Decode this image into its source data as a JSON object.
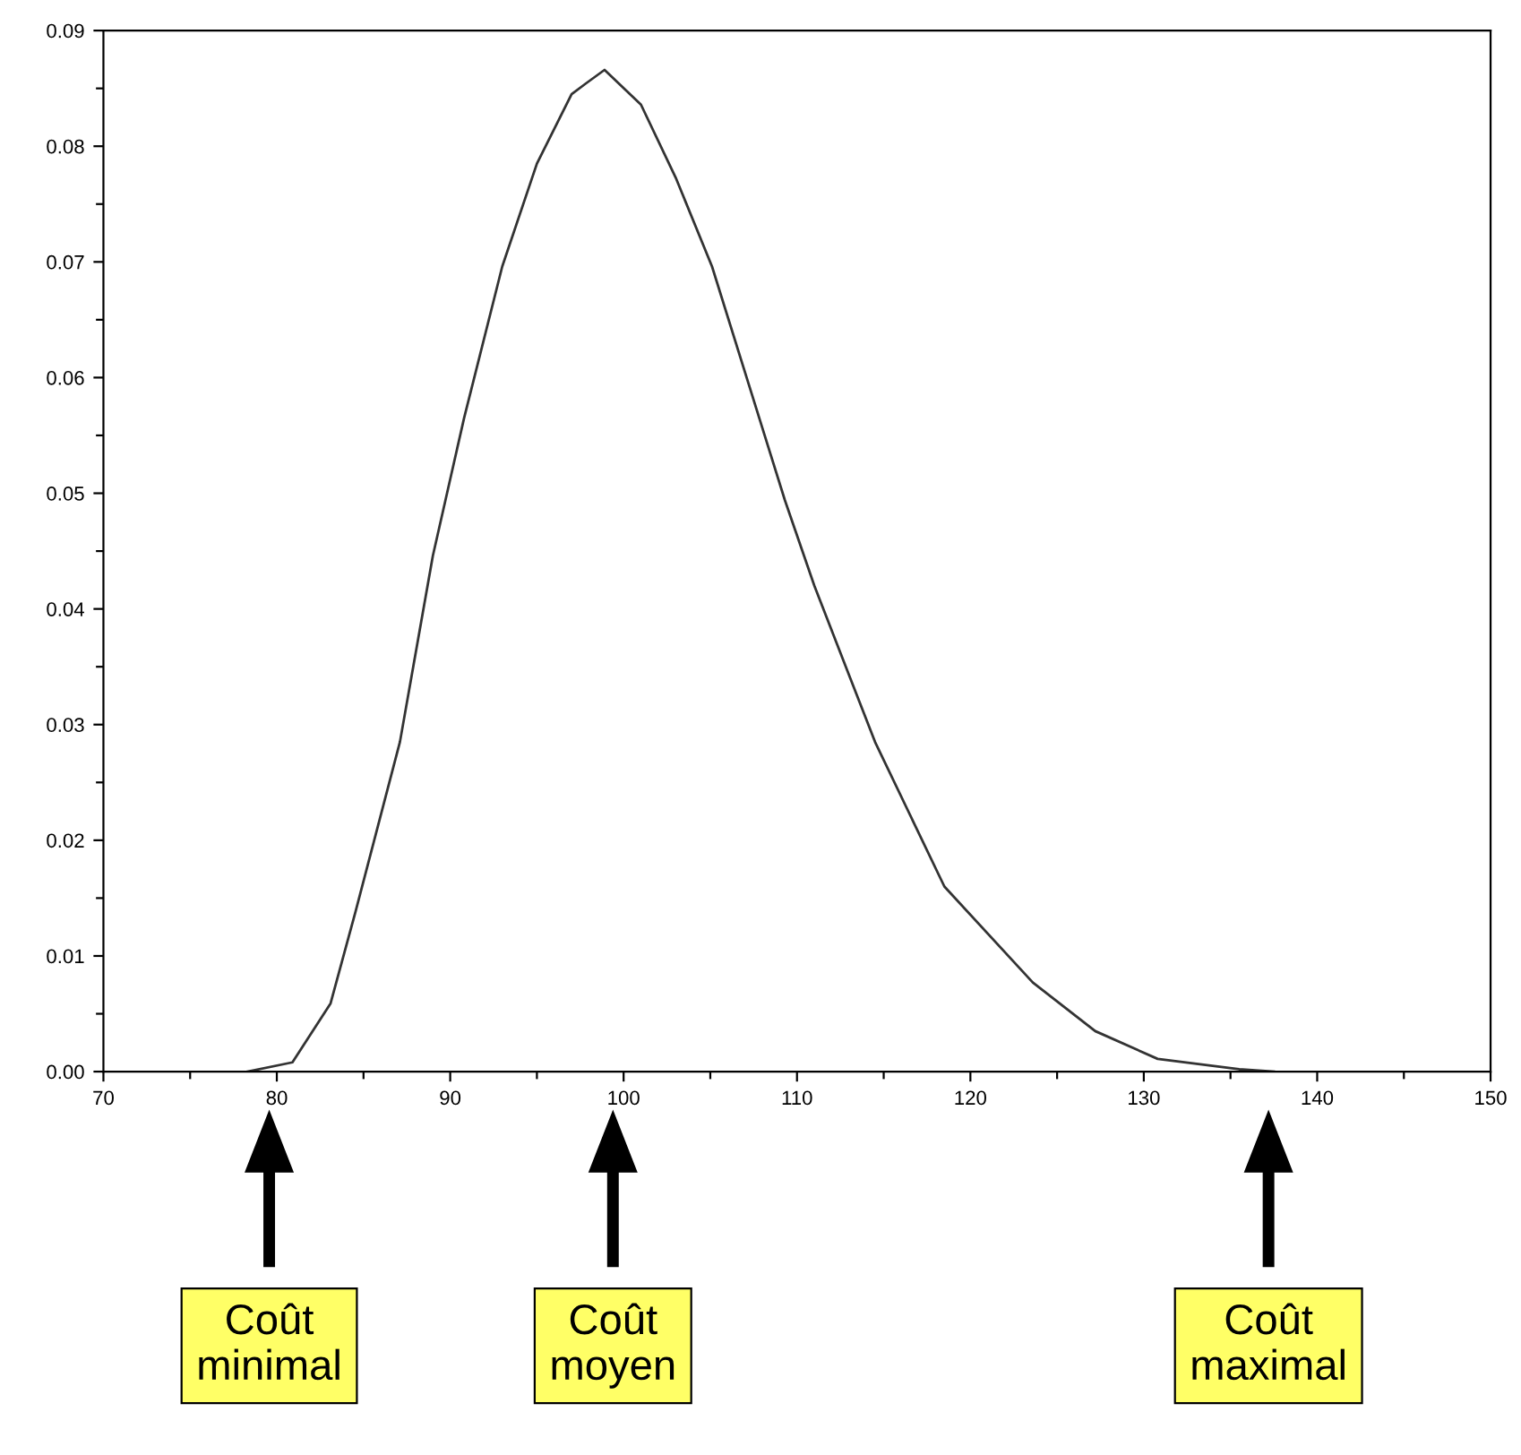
{
  "chart_data": {
    "type": "line",
    "x": [
      78.3,
      80.9,
      83.1,
      84.5,
      87.1,
      89.0,
      90.8,
      93.0,
      95.0,
      97.0,
      97.8,
      98.9,
      101.0,
      103.0,
      105.1,
      107.2,
      109.3,
      111.0,
      114.5,
      118.5,
      123.6,
      127.2,
      130.8,
      135.5,
      137.5
    ],
    "series": [
      {
        "color": "#333333",
        "values": [
          0.0,
          0.0008,
          0.0059,
          0.0136,
          0.0285,
          0.0446,
          0.0565,
          0.0696,
          0.0785,
          0.0845,
          0.0854,
          0.0866,
          0.0836,
          0.0773,
          0.0696,
          0.0595,
          0.0494,
          0.042,
          0.0285,
          0.016,
          0.0077,
          0.0035,
          0.0011,
          0.0002,
          0.0
        ]
      }
    ],
    "xlim": [
      70,
      150
    ],
    "ylim": [
      0,
      0.09
    ],
    "xticks": [
      70,
      {
        "value": 75,
        "label": null
      },
      80,
      {
        "value": 85,
        "label": null
      },
      90,
      {
        "value": 95,
        "label": null
      },
      100,
      {
        "value": 105,
        "label": null
      },
      110,
      {
        "value": 115,
        "label": null
      },
      120,
      {
        "value": 125,
        "label": null
      },
      130,
      {
        "value": 135,
        "label": null
      },
      140,
      {
        "value": 145,
        "label": null
      },
      150
    ],
    "yticks": [
      {
        "value": 0,
        "label": "0.00"
      },
      {
        "value": 0.005,
        "label": null
      },
      {
        "value": 0.01,
        "label": "0.01"
      },
      {
        "value": 0.015,
        "label": null
      },
      {
        "value": 0.02,
        "label": "0.02"
      },
      {
        "value": 0.025,
        "label": null
      },
      {
        "value": 0.03,
        "label": "0.03"
      },
      {
        "value": 0.035,
        "label": null
      },
      {
        "value": 0.04,
        "label": "0.04"
      },
      {
        "value": 0.045,
        "label": null
      },
      {
        "value": 0.05,
        "label": "0.05"
      },
      {
        "value": 0.055,
        "label": null
      },
      {
        "value": 0.06,
        "label": "0.06"
      },
      {
        "value": 0.065,
        "label": null
      },
      {
        "value": 0.07,
        "label": "0.07"
      },
      {
        "value": 0.075,
        "label": null
      },
      {
        "value": 0.08,
        "label": "0.08"
      },
      {
        "value": 0.085,
        "label": null
      },
      {
        "value": 0.09,
        "label": "0.09"
      }
    ],
    "annotations": [
      "Coût\nminimal",
      "Coût\nmoyen",
      "Coût\nmaximal"
    ]
  }
}
